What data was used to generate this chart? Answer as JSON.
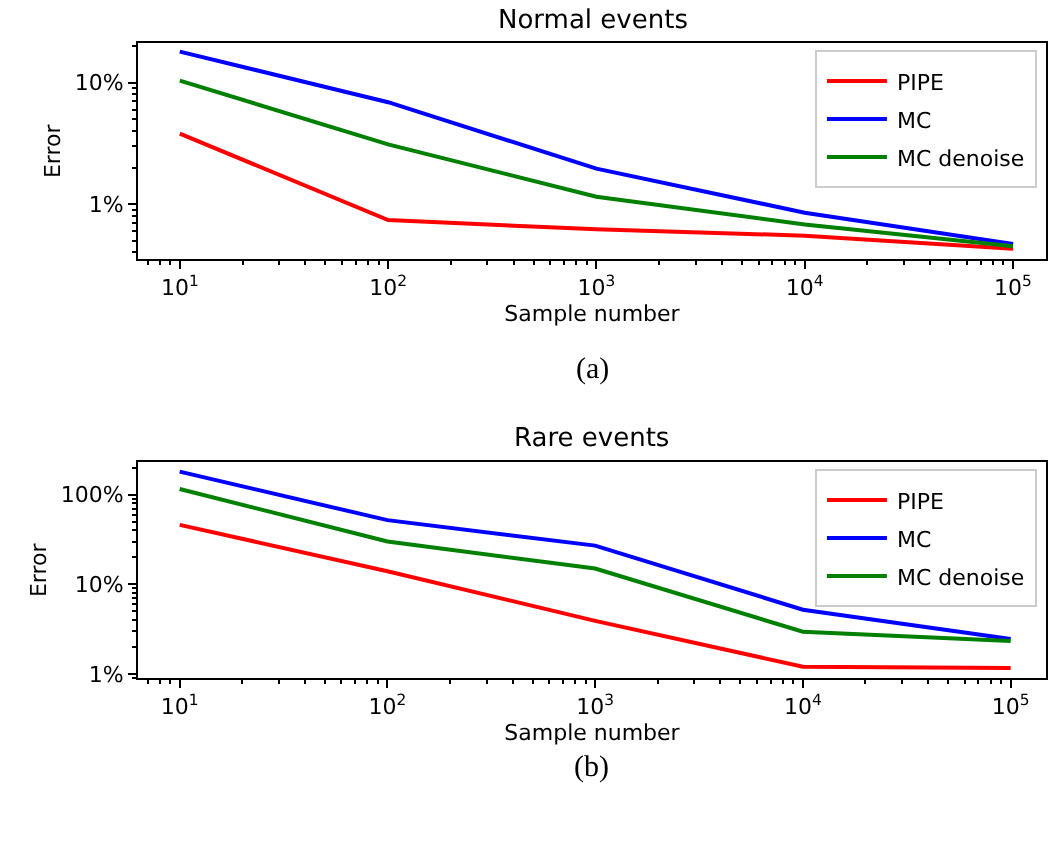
{
  "chart_data": [
    {
      "type": "line",
      "title": "Normal events",
      "xlabel": "Sample number",
      "ylabel": "Error",
      "annotations": [
        "(a)"
      ],
      "log": "xy",
      "grid": false,
      "legend": "top right",
      "marker": "none",
      "line_style": "solid",
      "x": [
        10,
        100,
        1000,
        10000,
        100000
      ],
      "xlim": [
        6.3,
        144000
      ],
      "xticks": [
        {
          "value": 10,
          "label": "10$^{1}$"
        },
        {
          "value": 100,
          "label": "10$^{2}$"
        },
        {
          "value": 1000,
          "label": "10$^{3}$"
        },
        {
          "value": 10000,
          "label": "10$^{4}$"
        },
        {
          "value": 100000,
          "label": "10$^{5}$"
        }
      ],
      "ylim": [
        0.354,
        21
      ],
      "yticks": [
        {
          "value": 1,
          "label": "1%"
        },
        {
          "value": 10,
          "label": "10%"
        }
      ],
      "series": [
        {
          "name": "PIPE",
          "color": "#ff0000",
          "values": [
            3.8,
            0.74,
            0.62,
            0.55,
            0.43
          ]
        },
        {
          "name": "MC",
          "color": "#0000ff",
          "values": [
            18,
            6.9,
            1.96,
            0.85,
            0.47
          ]
        },
        {
          "name": "MC denoise",
          "color": "#008000",
          "values": [
            10.4,
            3.1,
            1.15,
            0.68,
            0.45
          ]
        }
      ]
    },
    {
      "type": "line",
      "title": "Rare events",
      "xlabel": "Sample number",
      "ylabel": "Error",
      "annotations": [
        "(b)"
      ],
      "log": "xy",
      "grid": false,
      "legend": "top right",
      "marker": "none",
      "line_style": "solid",
      "x": [
        10,
        100,
        1000,
        10000,
        100000
      ],
      "xlim": [
        6.3,
        148000
      ],
      "xticks": [
        {
          "value": 10,
          "label": "10$^{1}$"
        },
        {
          "value": 100,
          "label": "10$^{2}$"
        },
        {
          "value": 1000,
          "label": "10$^{3}$"
        },
        {
          "value": 10000,
          "label": "10$^{4}$"
        },
        {
          "value": 100000,
          "label": "10$^{5}$"
        }
      ],
      "ylim": [
        0.9,
        229
      ],
      "yticks": [
        {
          "value": 1,
          "label": "1%"
        },
        {
          "value": 10,
          "label": "10%"
        },
        {
          "value": 100,
          "label": "100%"
        }
      ],
      "series": [
        {
          "name": "PIPE",
          "color": "#ff0000",
          "values": [
            46,
            14,
            3.9,
            1.2,
            1.16
          ]
        },
        {
          "name": "MC",
          "color": "#0000ff",
          "values": [
            181,
            52,
            27,
            5.2,
            2.45
          ]
        },
        {
          "name": "MC denoise",
          "color": "#008000",
          "values": [
            116,
            30,
            15,
            2.95,
            2.33
          ]
        }
      ]
    }
  ]
}
